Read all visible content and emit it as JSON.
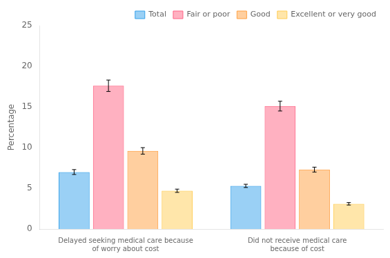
{
  "chart_data": {
    "type": "bar",
    "categories": [
      "Delayed seeking medical care because\nof worry about cost",
      "Did not receive medical care\nbecause of cost"
    ],
    "series": [
      {
        "name": "Total",
        "values": [
          7.0,
          5.3
        ],
        "errors": [
          0.3,
          0.2
        ]
      },
      {
        "name": "Fair or poor",
        "values": [
          17.6,
          15.1
        ],
        "errors": [
          0.7,
          0.6
        ]
      },
      {
        "name": "Good",
        "values": [
          9.6,
          7.3
        ],
        "errors": [
          0.4,
          0.3
        ]
      },
      {
        "name": "Excellent or very good",
        "values": [
          4.7,
          3.1
        ],
        "errors": [
          0.2,
          0.15
        ]
      }
    ],
    "ylabel": "Percentage",
    "ylim": [
      0,
      25
    ],
    "yticks": [
      0,
      5,
      10,
      15,
      20,
      25
    ],
    "grid": false,
    "legend": "upper right"
  }
}
